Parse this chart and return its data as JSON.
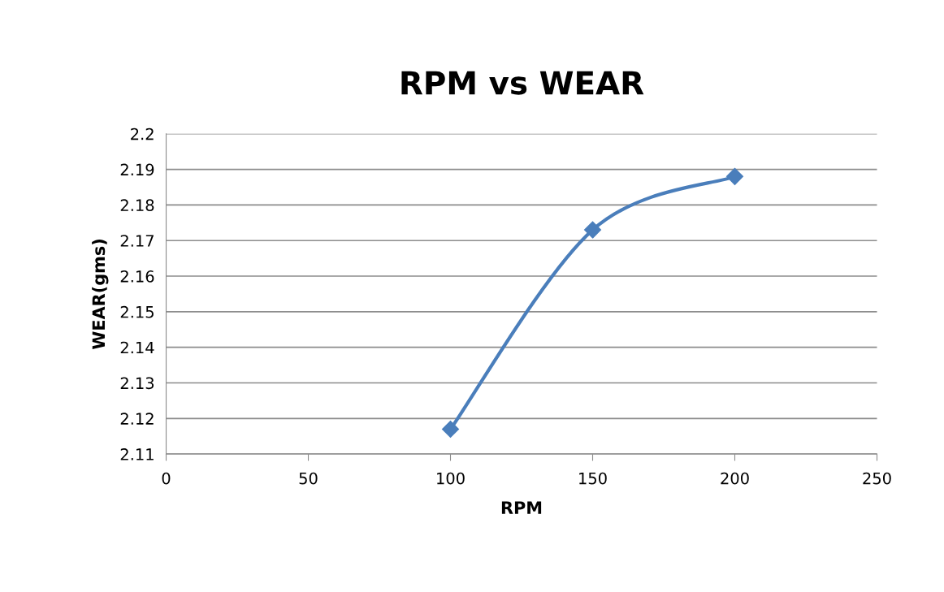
{
  "chart_data": {
    "type": "line",
    "title": "RPM vs WEAR",
    "xlabel": "RPM",
    "ylabel": "WEAR(gms)",
    "x": [
      100,
      150,
      200
    ],
    "series": [
      {
        "color": "#4a7ebb",
        "values": [
          2.117,
          2.173,
          2.188
        ]
      }
    ],
    "xlim": [
      0,
      250
    ],
    "xticks": [
      0,
      50,
      100,
      150,
      200,
      250
    ],
    "ylim": [
      2.11,
      2.2
    ],
    "yticks": [
      2.11,
      2.12,
      2.13,
      2.14,
      2.15,
      2.16,
      2.17,
      2.18,
      2.19,
      2.2
    ],
    "grid": "y",
    "marker": "diamond",
    "line_style": "solid"
  }
}
